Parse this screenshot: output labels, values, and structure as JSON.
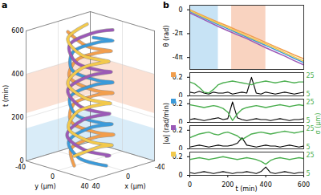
{
  "chart_data": [
    {
      "panel": "a",
      "type": "line3d",
      "xlabel": "x (μm)",
      "ylabel": "y (μm)",
      "zlabel": "t (min)",
      "xlim": [
        -40,
        40
      ],
      "xticks": [
        -40,
        0,
        40
      ],
      "ylim": [
        -40,
        40
      ],
      "yticks": [
        -40,
        0,
        40
      ],
      "zlim": [
        0,
        600
      ],
      "zticks": [
        0,
        200,
        400,
        600
      ],
      "bands": [
        {
          "from": 0,
          "to": 150,
          "color": "#b9dcf2"
        },
        {
          "from": 220,
          "to": 400,
          "color": "#f8c8b0"
        }
      ],
      "series": [
        {
          "color": "#f29e4c",
          "x": [
            20,
            5,
            -17,
            -15,
            9,
            20,
            1,
            -19,
            -11,
            13,
            18,
            -3,
            -20,
            -7,
            16,
            16
          ],
          "y": [
            0,
            -19,
            -10,
            14,
            18,
            -4,
            -20,
            -6,
            17,
            15,
            -8,
            -20,
            -2,
            19,
            12,
            -12
          ],
          "t": [
            0,
            40,
            80,
            120,
            160,
            200,
            240,
            280,
            320,
            360,
            400,
            440,
            480,
            520,
            560,
            600
          ]
        },
        {
          "color": "#3b9ad9",
          "x": [
            0,
            19,
            10,
            -14,
            -18,
            4,
            20,
            6,
            -17,
            -15,
            8,
            20,
            2,
            -19,
            -12,
            12
          ],
          "y": [
            20,
            5,
            -17,
            -15,
            9,
            20,
            1,
            -19,
            -11,
            13,
            18,
            -3,
            -20,
            -7,
            16,
            16
          ],
          "t": [
            0,
            40,
            80,
            120,
            160,
            200,
            240,
            280,
            320,
            360,
            400,
            440,
            480,
            520,
            560,
            600
          ]
        },
        {
          "color": "#9b59b6",
          "x": [
            -20,
            -5,
            17,
            15,
            -9,
            -20,
            -1,
            19,
            11,
            -13,
            -18,
            3,
            20,
            7,
            -16,
            -16
          ],
          "y": [
            0,
            19,
            10,
            -14,
            -18,
            4,
            20,
            6,
            -17,
            -15,
            8,
            20,
            2,
            -19,
            -12,
            12
          ],
          "t": [
            0,
            40,
            80,
            120,
            160,
            200,
            240,
            280,
            320,
            360,
            400,
            440,
            480,
            520,
            560,
            600
          ]
        },
        {
          "color": "#f2c94c",
          "x": [
            0,
            -19,
            -10,
            14,
            18,
            -4,
            -20,
            -6,
            17,
            15,
            -8,
            -20,
            -2,
            19,
            12,
            -12
          ],
          "y": [
            -20,
            -5,
            17,
            15,
            -9,
            -20,
            -1,
            19,
            11,
            -13,
            -18,
            3,
            20,
            7,
            -16,
            -16
          ],
          "t": [
            0,
            40,
            80,
            120,
            160,
            200,
            240,
            280,
            320,
            360,
            400,
            440,
            480,
            520,
            560,
            600
          ]
        }
      ]
    },
    {
      "panel": "b",
      "type": "line",
      "ylabel": "θ (rad)",
      "xlim": [
        0,
        600
      ],
      "ylim": [
        -15.7,
        1.2
      ],
      "yticks": [
        0,
        {
          "value": -6.283,
          "label": "-2π"
        },
        {
          "value": -12.566,
          "label": "-4π"
        }
      ],
      "bands": [
        {
          "from": 0,
          "to": 150,
          "color": "#b9dcf2"
        },
        {
          "from": 220,
          "to": 400,
          "color": "#f8c8b0"
        }
      ],
      "x": [
        0,
        50,
        100,
        150,
        200,
        250,
        300,
        350,
        400,
        450,
        500,
        550,
        600
      ],
      "series": [
        {
          "color": "#f29e4c",
          "values": [
            0,
            -1.1,
            -2.2,
            -3.3,
            -4.3,
            -5.4,
            -6.4,
            -7.5,
            -8.6,
            -9.7,
            -10.8,
            -11.9,
            -12.9
          ]
        },
        {
          "color": "#3b9ad9",
          "values": [
            -0.4,
            -1.6,
            -2.8,
            -3.9,
            -5.0,
            -6.1,
            -7.2,
            -8.3,
            -9.4,
            -10.5,
            -11.6,
            -12.8,
            -13.9
          ]
        },
        {
          "color": "#9b59b6",
          "values": [
            -0.8,
            -2.0,
            -3.2,
            -4.4,
            -5.5,
            -6.6,
            -7.6,
            -8.8,
            -10.0,
            -11.1,
            -12.2,
            -13.4,
            -14.5
          ]
        },
        {
          "color": "#f2c94c",
          "values": [
            -0.2,
            -1.4,
            -2.5,
            -3.6,
            -4.7,
            -5.8,
            -6.9,
            -8.0,
            -9.0,
            -10.1,
            -11.3,
            -12.4,
            -13.5
          ]
        }
      ]
    },
    {
      "type": "line",
      "color": "#f29e4c",
      "xlim": [
        0,
        600
      ],
      "ylim": [
        0,
        0.25
      ],
      "yticks": [
        0,
        0.2
      ],
      "y2lim": [
        3,
        28
      ],
      "y2ticks": [
        5,
        25
      ],
      "x": [
        0,
        25,
        50,
        75,
        100,
        125,
        150,
        175,
        200,
        225,
        250,
        275,
        300,
        325,
        350,
        375,
        400,
        425,
        450,
        475,
        500,
        525,
        550,
        575,
        600
      ],
      "series": [
        {
          "color": "#000000",
          "values": [
            0.04,
            0.03,
            0.05,
            0.03,
            0.02,
            0.04,
            0.03,
            0.03,
            0.04,
            0.02,
            0.03,
            0.04,
            0.03,
            0.2,
            0.03,
            0.02,
            0.04,
            0.03,
            0.02,
            0.03,
            0.04,
            0.03,
            0.02,
            0.03,
            0.04
          ]
        },
        {
          "color": "#4caf50",
          "axis": "y2",
          "values": [
            18,
            16,
            12,
            7,
            6,
            10,
            15,
            17,
            18,
            19,
            18,
            17,
            16,
            15,
            17,
            18,
            19,
            18,
            17,
            18,
            19,
            18,
            17,
            18,
            18
          ]
        }
      ]
    },
    {
      "type": "line",
      "color": "#3b9ad9",
      "ylabel": "|ω| (rad/min)",
      "y2label": "σ (μm)",
      "xlim": [
        0,
        600
      ],
      "ylim": [
        0,
        0.25
      ],
      "yticks": [
        0,
        0.2
      ],
      "y2lim": [
        3,
        28
      ],
      "y2ticks": [
        5,
        25
      ],
      "x": [
        0,
        25,
        50,
        75,
        100,
        125,
        150,
        175,
        200,
        225,
        250,
        275,
        300,
        325,
        350,
        375,
        400,
        425,
        450,
        475,
        500,
        525,
        550,
        575,
        600
      ],
      "series": [
        {
          "color": "#000000",
          "values": [
            0.03,
            0.04,
            0.03,
            0.02,
            0.03,
            0.04,
            0.05,
            0.03,
            0.04,
            0.22,
            0.05,
            0.03,
            0.02,
            0.03,
            0.04,
            0.03,
            0.03,
            0.02,
            0.03,
            0.04,
            0.03,
            0.02,
            0.03,
            0.03,
            0.04
          ]
        },
        {
          "color": "#4caf50",
          "axis": "y2",
          "values": [
            22,
            21,
            20,
            19,
            20,
            21,
            20,
            18,
            14,
            5,
            12,
            17,
            19,
            20,
            21,
            20,
            19,
            20,
            21,
            22,
            21,
            20,
            21,
            22,
            21
          ]
        }
      ]
    },
    {
      "type": "line",
      "color": "#9b59b6",
      "xlim": [
        0,
        600
      ],
      "ylim": [
        0,
        0.25
      ],
      "yticks": [
        0,
        0.2
      ],
      "y2lim": [
        3,
        28
      ],
      "y2ticks": [
        5,
        25
      ],
      "x": [
        0,
        25,
        50,
        75,
        100,
        125,
        150,
        175,
        200,
        225,
        250,
        275,
        300,
        325,
        350,
        375,
        400,
        425,
        450,
        475,
        500,
        525,
        550,
        575,
        600
      ],
      "series": [
        {
          "color": "#000000",
          "values": [
            0.02,
            0.03,
            0.04,
            0.03,
            0.02,
            0.03,
            0.04,
            0.03,
            0.03,
            0.04,
            0.06,
            0.12,
            0.04,
            0.03,
            0.02,
            0.03,
            0.04,
            0.03,
            0.03,
            0.02,
            0.03,
            0.04,
            0.03,
            0.02,
            0.03
          ]
        },
        {
          "color": "#4caf50",
          "axis": "y2",
          "values": [
            15,
            17,
            19,
            20,
            21,
            19,
            18,
            20,
            21,
            19,
            17,
            13,
            16,
            19,
            20,
            21,
            20,
            19,
            20,
            21,
            22,
            21,
            20,
            21,
            22
          ]
        }
      ]
    },
    {
      "type": "line",
      "color": "#f2c94c",
      "xlabel": "t (min)",
      "xlim": [
        0,
        600
      ],
      "xticks": [
        0,
        200,
        400,
        600
      ],
      "ylim": [
        0,
        0.25
      ],
      "yticks": [
        0,
        0.2
      ],
      "y2lim": [
        3,
        28
      ],
      "y2ticks": [
        5,
        25
      ],
      "x": [
        0,
        25,
        50,
        75,
        100,
        125,
        150,
        175,
        200,
        225,
        250,
        275,
        300,
        325,
        350,
        375,
        400,
        425,
        450,
        475,
        500,
        525,
        550,
        575,
        600
      ],
      "series": [
        {
          "color": "#000000",
          "values": [
            0.03,
            0.02,
            0.03,
            0.04,
            0.03,
            0.02,
            0.03,
            0.04,
            0.03,
            0.02,
            0.03,
            0.03,
            0.04,
            0.03,
            0.02,
            0.04,
            0.09,
            0.03,
            0.02,
            0.03,
            0.04,
            0.03,
            0.02,
            0.03,
            0.03
          ]
        },
        {
          "color": "#4caf50",
          "axis": "y2",
          "values": [
            20,
            21,
            22,
            21,
            20,
            21,
            22,
            23,
            22,
            21,
            20,
            21,
            22,
            21,
            20,
            18,
            15,
            19,
            21,
            22,
            21,
            20,
            21,
            22,
            21
          ]
        }
      ]
    }
  ]
}
